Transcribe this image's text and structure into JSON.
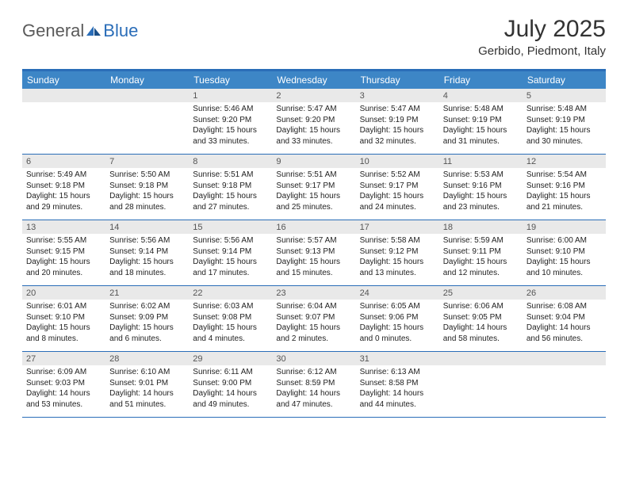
{
  "brand": {
    "part1": "General",
    "part2": "Blue"
  },
  "title": "July 2025",
  "location": "Gerbido, Piedmont, Italy",
  "colors": {
    "header_bar": "#3d86c6",
    "border": "#2a6db8",
    "daynum_bg": "#e9e9e9",
    "text": "#222222",
    "logo_gray": "#5a5a5a"
  },
  "day_names": [
    "Sunday",
    "Monday",
    "Tuesday",
    "Wednesday",
    "Thursday",
    "Friday",
    "Saturday"
  ],
  "weeks": [
    [
      null,
      null,
      {
        "n": "1",
        "sr": "5:46 AM",
        "ss": "9:20 PM",
        "dl": "15 hours and 33 minutes."
      },
      {
        "n": "2",
        "sr": "5:47 AM",
        "ss": "9:20 PM",
        "dl": "15 hours and 33 minutes."
      },
      {
        "n": "3",
        "sr": "5:47 AM",
        "ss": "9:19 PM",
        "dl": "15 hours and 32 minutes."
      },
      {
        "n": "4",
        "sr": "5:48 AM",
        "ss": "9:19 PM",
        "dl": "15 hours and 31 minutes."
      },
      {
        "n": "5",
        "sr": "5:48 AM",
        "ss": "9:19 PM",
        "dl": "15 hours and 30 minutes."
      }
    ],
    [
      {
        "n": "6",
        "sr": "5:49 AM",
        "ss": "9:18 PM",
        "dl": "15 hours and 29 minutes."
      },
      {
        "n": "7",
        "sr": "5:50 AM",
        "ss": "9:18 PM",
        "dl": "15 hours and 28 minutes."
      },
      {
        "n": "8",
        "sr": "5:51 AM",
        "ss": "9:18 PM",
        "dl": "15 hours and 27 minutes."
      },
      {
        "n": "9",
        "sr": "5:51 AM",
        "ss": "9:17 PM",
        "dl": "15 hours and 25 minutes."
      },
      {
        "n": "10",
        "sr": "5:52 AM",
        "ss": "9:17 PM",
        "dl": "15 hours and 24 minutes."
      },
      {
        "n": "11",
        "sr": "5:53 AM",
        "ss": "9:16 PM",
        "dl": "15 hours and 23 minutes."
      },
      {
        "n": "12",
        "sr": "5:54 AM",
        "ss": "9:16 PM",
        "dl": "15 hours and 21 minutes."
      }
    ],
    [
      {
        "n": "13",
        "sr": "5:55 AM",
        "ss": "9:15 PM",
        "dl": "15 hours and 20 minutes."
      },
      {
        "n": "14",
        "sr": "5:56 AM",
        "ss": "9:14 PM",
        "dl": "15 hours and 18 minutes."
      },
      {
        "n": "15",
        "sr": "5:56 AM",
        "ss": "9:14 PM",
        "dl": "15 hours and 17 minutes."
      },
      {
        "n": "16",
        "sr": "5:57 AM",
        "ss": "9:13 PM",
        "dl": "15 hours and 15 minutes."
      },
      {
        "n": "17",
        "sr": "5:58 AM",
        "ss": "9:12 PM",
        "dl": "15 hours and 13 minutes."
      },
      {
        "n": "18",
        "sr": "5:59 AM",
        "ss": "9:11 PM",
        "dl": "15 hours and 12 minutes."
      },
      {
        "n": "19",
        "sr": "6:00 AM",
        "ss": "9:10 PM",
        "dl": "15 hours and 10 minutes."
      }
    ],
    [
      {
        "n": "20",
        "sr": "6:01 AM",
        "ss": "9:10 PM",
        "dl": "15 hours and 8 minutes."
      },
      {
        "n": "21",
        "sr": "6:02 AM",
        "ss": "9:09 PM",
        "dl": "15 hours and 6 minutes."
      },
      {
        "n": "22",
        "sr": "6:03 AM",
        "ss": "9:08 PM",
        "dl": "15 hours and 4 minutes."
      },
      {
        "n": "23",
        "sr": "6:04 AM",
        "ss": "9:07 PM",
        "dl": "15 hours and 2 minutes."
      },
      {
        "n": "24",
        "sr": "6:05 AM",
        "ss": "9:06 PM",
        "dl": "15 hours and 0 minutes."
      },
      {
        "n": "25",
        "sr": "6:06 AM",
        "ss": "9:05 PM",
        "dl": "14 hours and 58 minutes."
      },
      {
        "n": "26",
        "sr": "6:08 AM",
        "ss": "9:04 PM",
        "dl": "14 hours and 56 minutes."
      }
    ],
    [
      {
        "n": "27",
        "sr": "6:09 AM",
        "ss": "9:03 PM",
        "dl": "14 hours and 53 minutes."
      },
      {
        "n": "28",
        "sr": "6:10 AM",
        "ss": "9:01 PM",
        "dl": "14 hours and 51 minutes."
      },
      {
        "n": "29",
        "sr": "6:11 AM",
        "ss": "9:00 PM",
        "dl": "14 hours and 49 minutes."
      },
      {
        "n": "30",
        "sr": "6:12 AM",
        "ss": "8:59 PM",
        "dl": "14 hours and 47 minutes."
      },
      {
        "n": "31",
        "sr": "6:13 AM",
        "ss": "8:58 PM",
        "dl": "14 hours and 44 minutes."
      },
      null,
      null
    ]
  ],
  "labels": {
    "sunrise": "Sunrise:",
    "sunset": "Sunset:",
    "daylight": "Daylight:"
  }
}
